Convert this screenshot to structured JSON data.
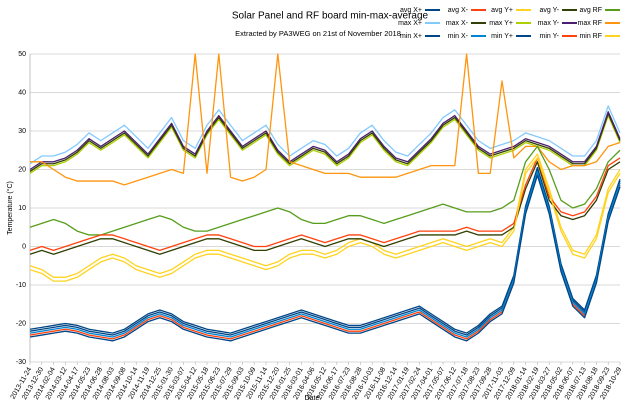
{
  "chart_data": {
    "type": "line",
    "title": "Solar Panel and RF board min-max-average",
    "subtitle": "Extracted by PA3WEG on 21st of November 2018",
    "y_label": "Temperature (°C)",
    "x_label": "Date",
    "categories": [
      "2013-11-24",
      "2013-12-30",
      "2014-02-04",
      "2014-03-12",
      "2014-04-17",
      "2014-05-23",
      "2014-06-28",
      "2014-08-03",
      "2014-09-08",
      "2014-10-14",
      "2014-11-19",
      "2014-12-25",
      "2015-01-30",
      "2015-03-07",
      "2015-04-12",
      "2015-05-18",
      "2015-06-23",
      "2015-07-29",
      "2015-09-03",
      "2015-10-09",
      "2015-11-14",
      "2015-12-20",
      "2016-01-25",
      "2016-03-01",
      "2016-04-06",
      "2016-05-12",
      "2016-06-17",
      "2016-07-23",
      "2016-08-28",
      "2016-10-03",
      "2016-11-08",
      "2016-12-14",
      "2017-01-19",
      "2017-02-24",
      "2017-04-01",
      "2017-05-07",
      "2017-06-12",
      "2017-07-18",
      "2017-08-23",
      "2017-09-28",
      "2017-11-03",
      "2017-12-09",
      "2018-01-14",
      "2018-02-19",
      "2018-03-27",
      "2018-05-02",
      "2018-06-07",
      "2018-07-13",
      "2018-08-18",
      "2018-09-23",
      "2018-10-29"
    ],
    "ylim": [
      -30,
      50
    ],
    "yticks": [
      -30,
      -20,
      -10,
      0,
      10,
      20,
      30,
      40,
      50
    ],
    "grid": true,
    "series": [
      {
        "name": "avg X+",
        "color": "#004586",
        "values": [
          -21.5,
          -21,
          -20.5,
          -20,
          -20.5,
          -21.5,
          -22,
          -22.5,
          -21.5,
          -19.5,
          -17.5,
          -16.5,
          -17.5,
          -19.5,
          -20.5,
          -21.5,
          -22,
          -22.5,
          -21.5,
          -20.5,
          -19.5,
          -18.5,
          -17.5,
          -16.5,
          -17.5,
          -18.5,
          -19.5,
          -20.5,
          -20.5,
          -19.5,
          -18.5,
          -17.5,
          -16.5,
          -15.5,
          -17.5,
          -19.5,
          -21.5,
          -22.5,
          -20.5,
          -17.5,
          -15.5,
          -7.5,
          10.5,
          20.5,
          10.5,
          -4.5,
          -13.5,
          -16.5,
          -7.5,
          8.5,
          17.5
        ]
      },
      {
        "name": "avg X-",
        "color": "#ff420e",
        "values": [
          -23,
          -22.5,
          -22,
          -21.5,
          -22,
          -23,
          -23.5,
          -24,
          -23,
          -21,
          -19,
          -18,
          -19,
          -21,
          -22,
          -23,
          -23.5,
          -24,
          -23,
          -22,
          -21,
          -20,
          -19,
          -18,
          -19,
          -20,
          -21,
          -22,
          -22,
          -21,
          -20,
          -19,
          -18,
          -17,
          -19,
          -21,
          -23,
          -24,
          -22,
          -19,
          -17,
          -9,
          9,
          19,
          9,
          -6,
          -15,
          -18,
          -9,
          7,
          16
        ]
      },
      {
        "name": "avg Y+",
        "color": "#ffd320",
        "values": [
          -5,
          -6,
          -8,
          -8,
          -7,
          -5,
          -3,
          -2,
          -3,
          -5,
          -6,
          -7,
          -6,
          -4,
          -2,
          -1,
          -1,
          -2,
          -3,
          -4,
          -5,
          -4,
          -2,
          -1,
          -1,
          -2,
          -1,
          1,
          2,
          1,
          -1,
          -2,
          -1,
          0,
          1,
          2,
          1,
          0,
          1,
          2,
          1,
          5,
          20,
          24,
          15,
          5,
          -1,
          -2,
          3,
          15,
          20
        ]
      },
      {
        "name": "avg Y-",
        "color": "#314004",
        "values": [
          -2,
          -1,
          -2,
          -1,
          0,
          1,
          2,
          2,
          1,
          0,
          -1,
          -2,
          -1,
          0,
          1,
          2,
          2,
          1,
          0,
          -1,
          -1,
          0,
          1,
          2,
          1,
          0,
          1,
          2,
          2,
          1,
          0,
          1,
          2,
          3,
          3,
          3,
          3,
          4,
          3,
          3,
          3,
          5,
          15,
          22,
          12,
          8,
          7,
          8,
          12,
          20,
          22
        ]
      },
      {
        "name": "avg RF",
        "color": "#579d1c",
        "values": [
          5,
          6,
          7,
          6,
          4,
          3,
          3,
          4,
          5,
          6,
          7,
          8,
          7,
          5,
          4,
          4,
          5,
          6,
          7,
          8,
          9,
          10,
          9,
          7,
          6,
          6,
          7,
          8,
          8,
          7,
          6,
          7,
          8,
          9,
          10,
          11,
          10,
          9,
          9,
          9,
          10,
          12,
          22,
          26,
          20,
          12,
          10,
          11,
          15,
          22,
          25
        ]
      },
      {
        "name": "max X+",
        "color": "#83caff",
        "values": [
          21.5,
          23.5,
          23.5,
          24.5,
          26.5,
          29.5,
          27.5,
          29.5,
          31.5,
          28.5,
          25.5,
          29.5,
          33.5,
          27.5,
          25.5,
          31.5,
          35.5,
          31.5,
          27.5,
          29.5,
          31.5,
          26.5,
          23.5,
          25.5,
          27.5,
          26.5,
          23.5,
          25.5,
          29.5,
          31.5,
          27.5,
          24.5,
          23.5,
          26.5,
          29.5,
          33.5,
          35.5,
          31.5,
          27.5,
          25.5,
          26.5,
          27.5,
          29.5,
          28.5,
          27.5,
          25.5,
          23.5,
          23.5,
          27.5,
          36.5,
          29.5
        ]
      },
      {
        "name": "max X-",
        "color": "#314004",
        "values": [
          19.5,
          21.5,
          21.5,
          22.5,
          24.5,
          27.5,
          25.5,
          27.5,
          29.5,
          26.5,
          23.5,
          27.5,
          31.5,
          25.5,
          23.5,
          29.5,
          33.5,
          29.5,
          25.5,
          27.5,
          29.5,
          24.5,
          21.5,
          23.5,
          25.5,
          24.5,
          21.5,
          23.5,
          27.5,
          29.5,
          25.5,
          22.5,
          21.5,
          24.5,
          27.5,
          31.5,
          33.5,
          29.5,
          25.5,
          23.5,
          24.5,
          25.5,
          27.5,
          26.5,
          25.5,
          23.5,
          21.5,
          21.5,
          25.5,
          34.5,
          27.5
        ]
      },
      {
        "name": "max Y+",
        "color": "#aecf00",
        "values": [
          19,
          21,
          21,
          22,
          24,
          27,
          25,
          27,
          29,
          26,
          23,
          27,
          31,
          25,
          23,
          29,
          33,
          29,
          25,
          27,
          29,
          24,
          21,
          23,
          25,
          24,
          21,
          23,
          27,
          29,
          25,
          22,
          21,
          24,
          27,
          31,
          33,
          29,
          25,
          23,
          24,
          25,
          27,
          26,
          25,
          23,
          21,
          21,
          25,
          34,
          27
        ]
      },
      {
        "name": "max Y-",
        "color": "#4b1f6f",
        "values": [
          20,
          22,
          22,
          23,
          25,
          28,
          26,
          28,
          30,
          27,
          24,
          28,
          32,
          26,
          24,
          30,
          34,
          30,
          26,
          28,
          30,
          25,
          22,
          24,
          26,
          25,
          22,
          24,
          28,
          30,
          26,
          23,
          22,
          25,
          28,
          32,
          34,
          30,
          26,
          24,
          25,
          26,
          28,
          27,
          26,
          24,
          22,
          22,
          26,
          35,
          28
        ]
      },
      {
        "name": "max RF",
        "color": "#ff950e",
        "values": [
          22,
          22,
          20,
          18,
          17,
          17,
          17,
          17,
          16,
          17,
          18,
          19,
          20,
          19,
          50,
          19,
          50,
          18,
          17,
          18,
          20,
          50,
          22,
          21,
          20,
          19,
          19,
          19,
          18,
          18,
          18,
          18,
          19,
          20,
          21,
          21,
          21,
          50,
          19,
          19,
          43,
          23,
          26,
          26,
          22,
          20,
          21,
          21,
          22,
          26,
          27
        ]
      },
      {
        "name": "min X+",
        "color": "#004586",
        "values": [
          -22,
          -21.5,
          -21,
          -20.5,
          -21,
          -22,
          -22.5,
          -23,
          -22,
          -20,
          -18,
          -17,
          -18,
          -20,
          -21,
          -22,
          -22.5,
          -23,
          -22,
          -21,
          -20,
          -19,
          -18,
          -17,
          -18,
          -19,
          -20,
          -21,
          -21,
          -20,
          -19,
          -18,
          -17,
          -16,
          -18,
          -20,
          -22,
          -23,
          -21,
          -18,
          -16,
          -8,
          10,
          20,
          10,
          -5,
          -14,
          -17,
          -8,
          8,
          17
        ]
      },
      {
        "name": "min X-",
        "color": "#0084d1",
        "values": [
          -22.5,
          -22,
          -21.5,
          -21,
          -21.5,
          -22.5,
          -23,
          -23.5,
          -22.5,
          -20.5,
          -18.5,
          -17.5,
          -18.5,
          -20.5,
          -21.5,
          -22.5,
          -23,
          -23.5,
          -22.5,
          -21.5,
          -20.5,
          -19.5,
          -18.5,
          -17.5,
          -18.5,
          -19.5,
          -20.5,
          -21.5,
          -21.5,
          -20.5,
          -19.5,
          -18.5,
          -17.5,
          -16.5,
          -18.5,
          -20.5,
          -22.5,
          -23.5,
          -21.5,
          -18.5,
          -16.5,
          -8.5,
          9.5,
          19.5,
          9.5,
          -5.5,
          -14.5,
          -17.5,
          -8.5,
          7.5,
          16.5
        ]
      },
      {
        "name": "min Y+",
        "color": "#004586",
        "values": [
          -23.5,
          -23,
          -22.5,
          -22,
          -22.5,
          -23.5,
          -24,
          -24.5,
          -23.5,
          -21.5,
          -19.5,
          -18.5,
          -19.5,
          -21.5,
          -22.5,
          -23.5,
          -24,
          -24.5,
          -23.5,
          -22.5,
          -21.5,
          -20.5,
          -19.5,
          -18.5,
          -19.5,
          -20.5,
          -21.5,
          -22.5,
          -22.5,
          -21.5,
          -20.5,
          -19.5,
          -18.5,
          -17.5,
          -19.5,
          -21.5,
          -23.5,
          -24.5,
          -22.5,
          -19.5,
          -17.5,
          -9.5,
          8.5,
          18.5,
          8.5,
          -6.5,
          -15.5,
          -18.5,
          -9.5,
          6.5,
          15.5
        ]
      },
      {
        "name": "min Y-",
        "color": "#ff420e",
        "values": [
          -1,
          0,
          -1,
          0,
          1,
          2,
          3,
          3,
          2,
          1,
          0,
          -1,
          0,
          1,
          2,
          3,
          3,
          2,
          1,
          0,
          0,
          1,
          2,
          3,
          2,
          1,
          2,
          3,
          3,
          2,
          1,
          2,
          3,
          4,
          4,
          4,
          4,
          5,
          4,
          4,
          4,
          6,
          16,
          23,
          13,
          9,
          8,
          9,
          13,
          21,
          23
        ]
      },
      {
        "name": "min RF",
        "color": "#ffd320",
        "values": [
          -6,
          -7,
          -9,
          -9,
          -8,
          -6,
          -4,
          -3,
          -4,
          -6,
          -7,
          -8,
          -7,
          -5,
          -3,
          -2,
          -2,
          -3,
          -4,
          -5,
          -6,
          -5,
          -3,
          -2,
          -2,
          -3,
          -2,
          0,
          1,
          0,
          -2,
          -3,
          -2,
          -1,
          0,
          1,
          0,
          -1,
          0,
          1,
          0,
          4,
          19,
          23,
          14,
          4,
          -2,
          -3,
          2,
          14,
          19
        ]
      }
    ]
  }
}
